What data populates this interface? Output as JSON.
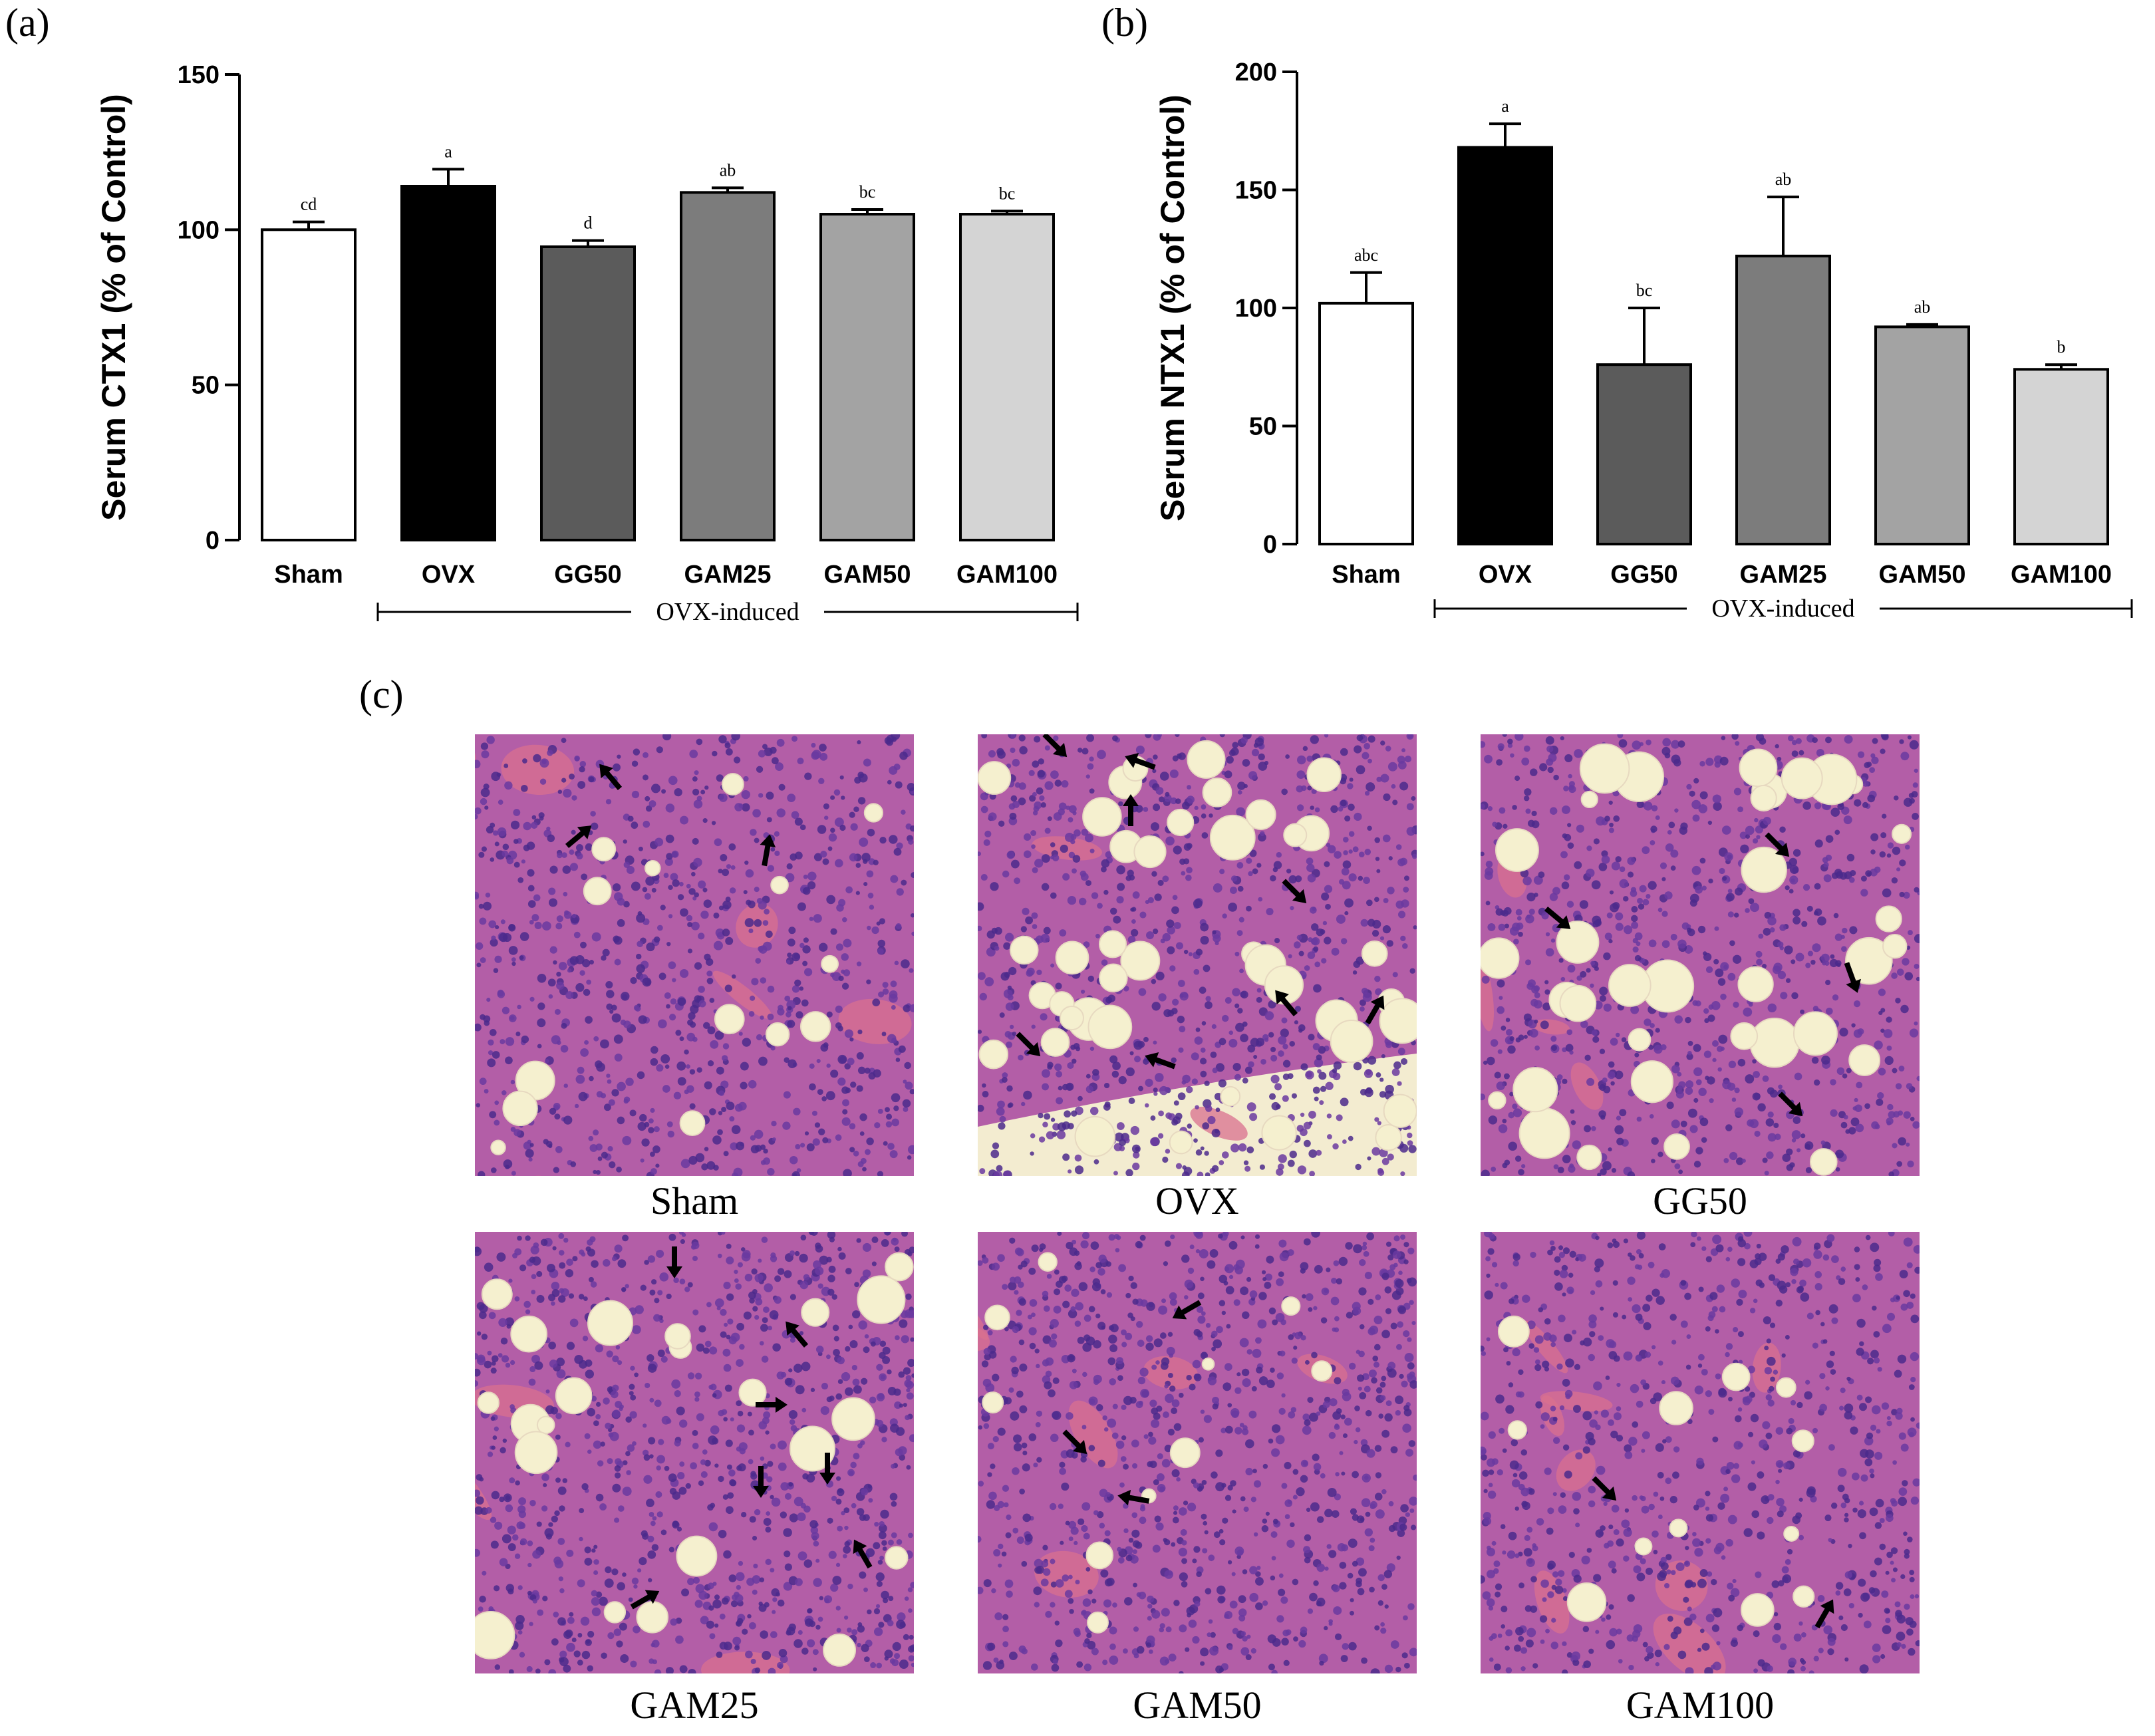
{
  "panels": {
    "a": "(a)",
    "b": "(b)",
    "c": "(c)"
  },
  "chart_data": [
    {
      "type": "bar",
      "ylabel": "Serum CTX1 (% of Control)",
      "categories": [
        "Sham",
        "OVX",
        "GG50",
        "GAM25",
        "GAM50",
        "GAM100"
      ],
      "values": [
        100,
        114,
        94.5,
        112,
        105,
        105
      ],
      "errors": [
        2.5,
        5.5,
        2,
        1.5,
        1.5,
        1
      ],
      "significance": [
        "cd",
        "a",
        "d",
        "ab",
        "bc",
        "bc"
      ],
      "bar_colors": [
        "#ffffff",
        "#000000",
        "#5b5b5b",
        "#7c7c7c",
        "#a3a3a3",
        "#d4d4d4"
      ],
      "yticks": [
        0,
        50,
        100,
        150
      ],
      "ylim": [
        0,
        150
      ],
      "group_label": "OVX-induced"
    },
    {
      "type": "bar",
      "ylabel": "Serum NTX1 (% of Control)",
      "categories": [
        "Sham",
        "OVX",
        "GG50",
        "GAM25",
        "GAM50",
        "GAM100"
      ],
      "values": [
        102,
        168,
        76,
        122,
        92,
        74
      ],
      "errors": [
        13,
        10,
        24,
        25,
        1,
        2
      ],
      "significance": [
        "abc",
        "a",
        "bc",
        "ab",
        "ab",
        "b"
      ],
      "bar_colors": [
        "#ffffff",
        "#000000",
        "#5b5b5b",
        "#7c7c7c",
        "#a3a3a3",
        "#d4d4d4"
      ],
      "yticks": [
        0,
        50,
        100,
        150,
        200
      ],
      "ylim": [
        0,
        200
      ],
      "group_label": "OVX-induced"
    }
  ],
  "histology": {
    "captions": [
      "Sham",
      "OVX",
      "GG50",
      "GAM25",
      "GAM50",
      "GAM100"
    ]
  },
  "colors": {
    "tissue": "#b45fa8",
    "nuclei": "#4a2a8a",
    "fat": "#f4edc7",
    "eosin": "#d66a8c",
    "arrow": "#000000"
  }
}
